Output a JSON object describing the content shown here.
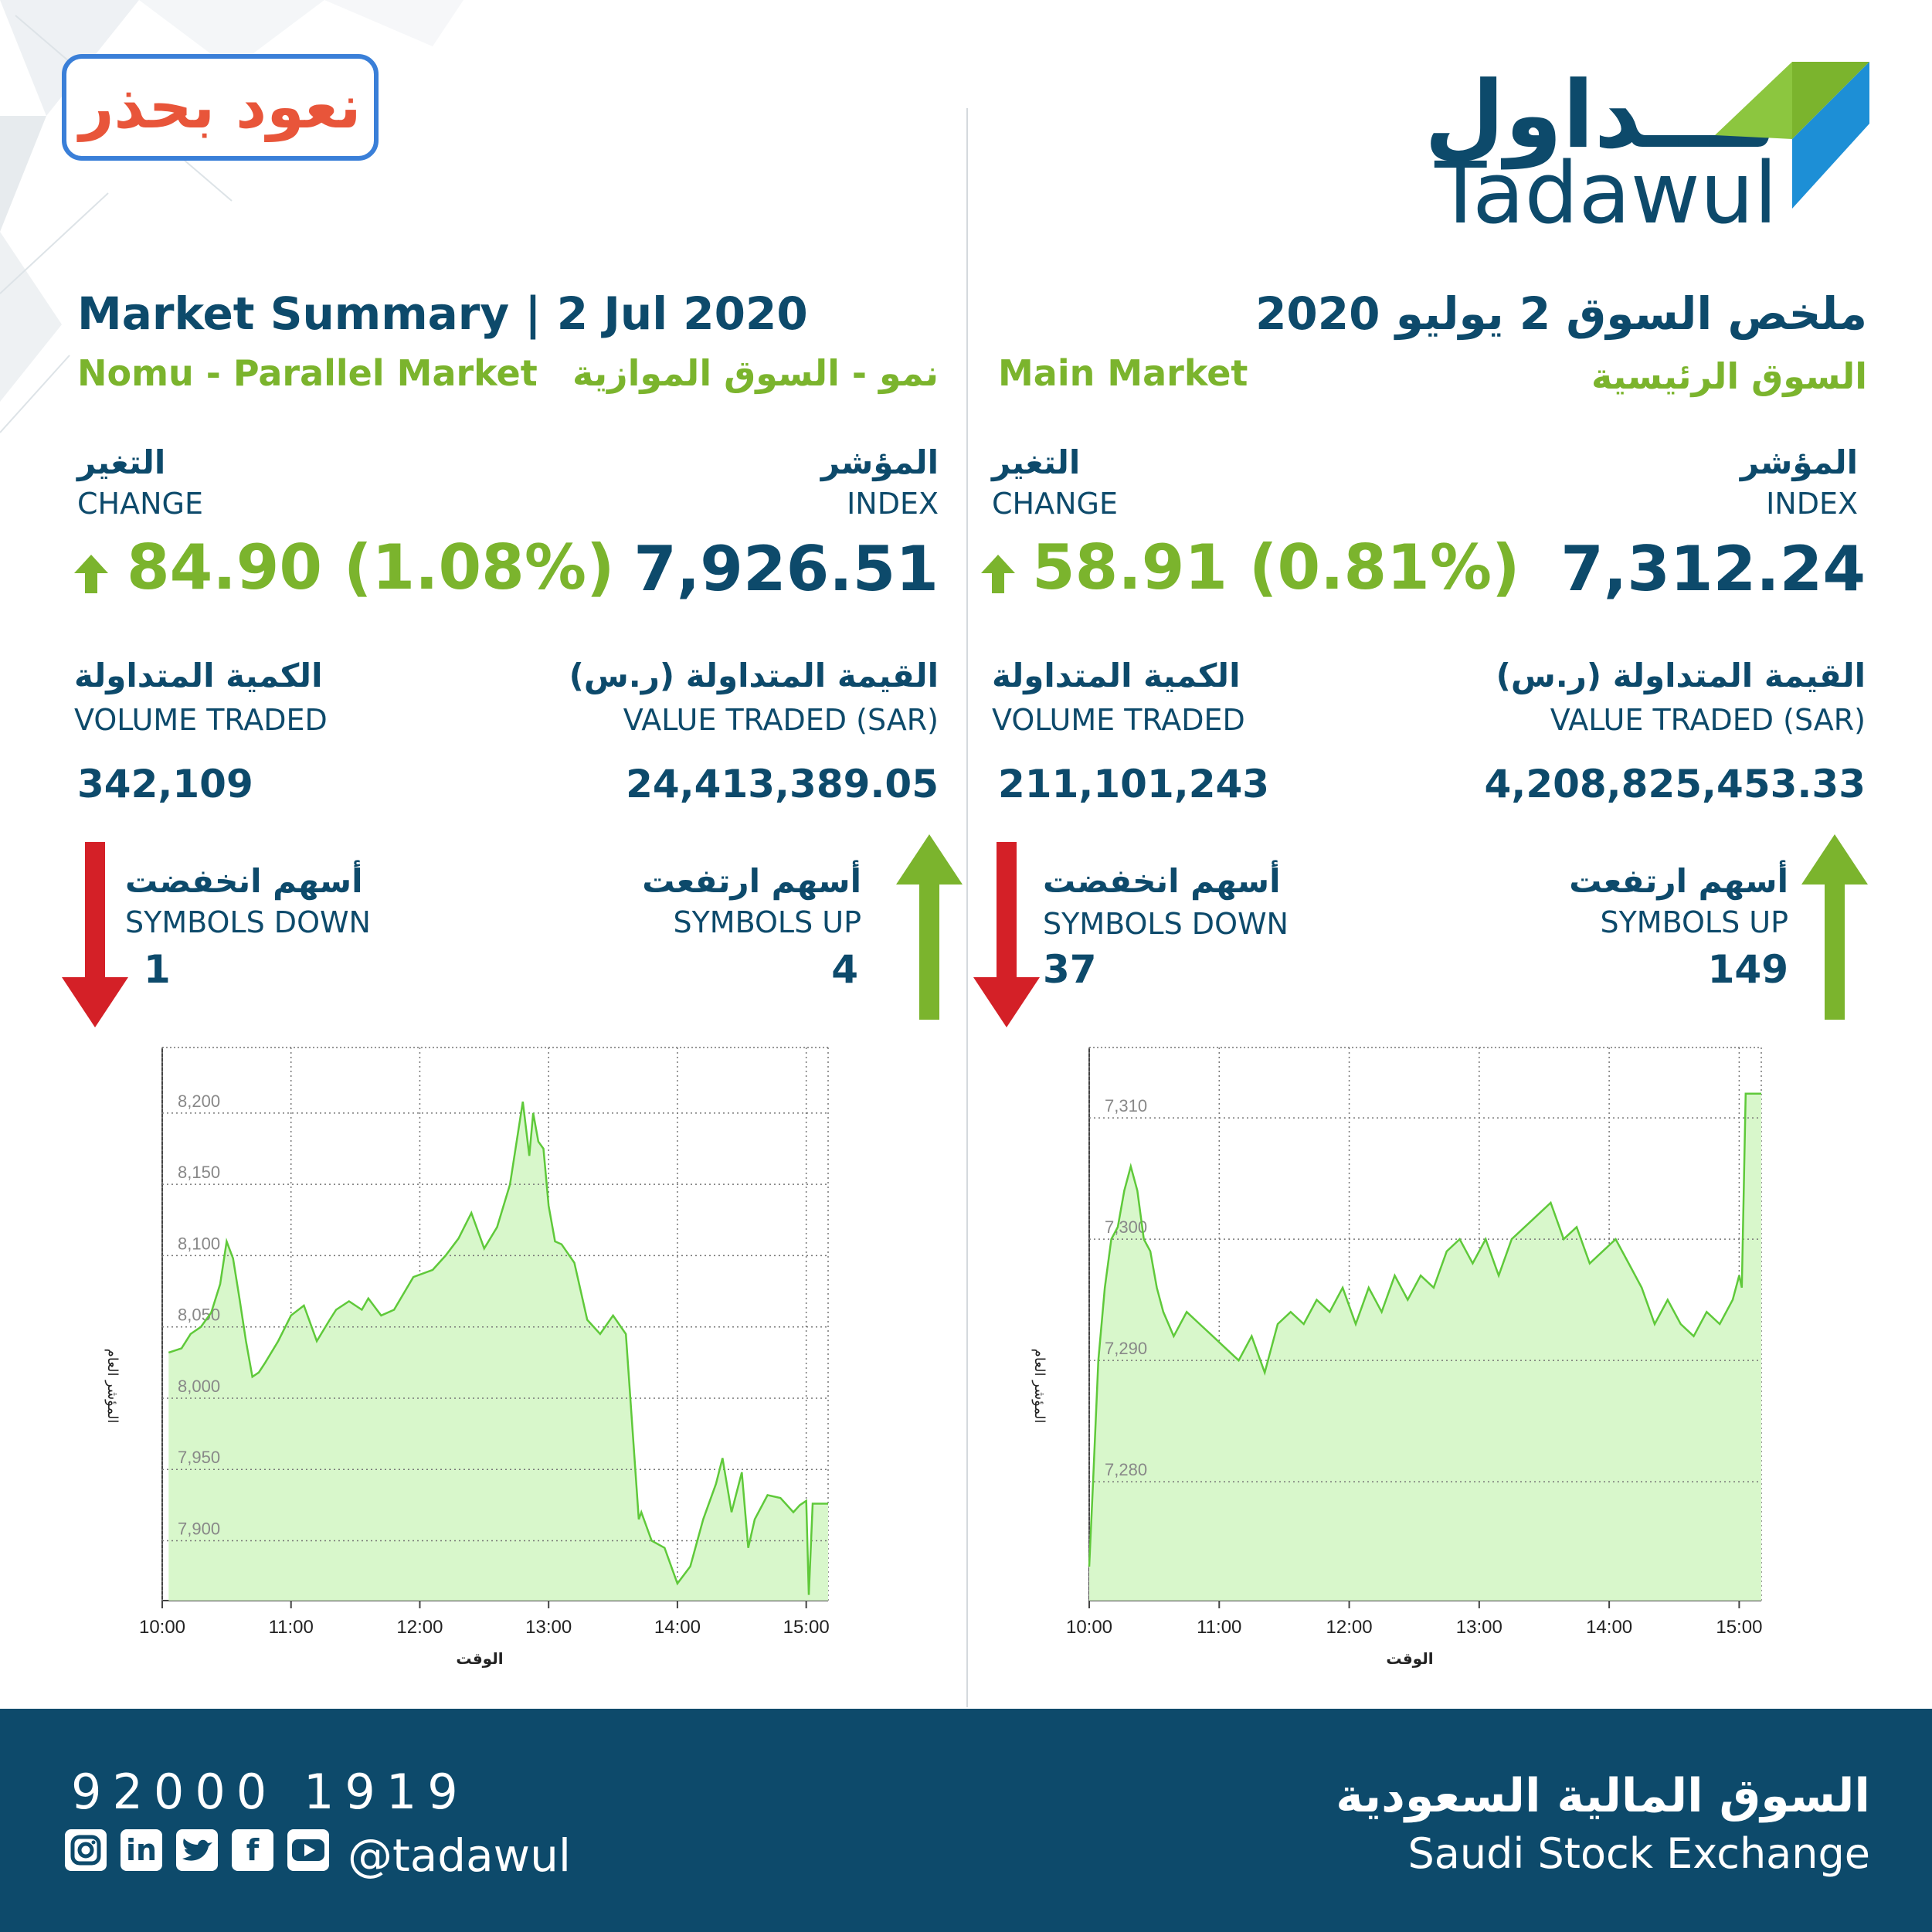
{
  "badge": {
    "text": "نعود بحذر"
  },
  "logo": {
    "arabic": "تـــداول",
    "english": "Tadawul"
  },
  "left": {
    "title": "Market Summary | 2 Jul 2020",
    "market_en": "Nomu - Parallel Market",
    "market_ar": "نمو - السوق الموازية",
    "index_ar": "المؤشر",
    "index_en": "INDEX",
    "index_value": "7,926.51",
    "change_ar": "التغير",
    "change_en": "CHANGE",
    "change_value": "84.90 (1.08%)",
    "value_ar": "القيمة المتداولة (ر.س)",
    "value_en": "VALUE TRADED (SAR)",
    "value_value": "24,413,389.05",
    "volume_ar": "الكمية المتداولة",
    "volume_en": "VOLUME TRADED",
    "volume_value": "342,109",
    "up_ar": "أسهم ارتفعت",
    "up_en": "SYMBOLS UP",
    "up_value": "4",
    "down_ar": "أسهم انخفضت",
    "down_en": "SYMBOLS DOWN",
    "down_value": "1"
  },
  "right": {
    "title": "ملخص السوق 2 يوليو 2020",
    "market_en": "Main Market",
    "market_ar": "السوق الرئيسية",
    "index_ar": "المؤشر",
    "index_en": "INDEX",
    "index_value": "7,312.24",
    "change_ar": "التغير",
    "change_en": "CHANGE",
    "change_value": "58.91 (0.81%)",
    "value_ar": "القيمة المتداولة (ر.س)",
    "value_en": "VALUE TRADED (SAR)",
    "value_value": "4,208,825,453.33",
    "volume_ar": "الكمية المتداولة",
    "volume_en": "VOLUME TRADED",
    "volume_value": "211,101,243",
    "up_ar": "أسهم ارتفعت",
    "up_en": "SYMBOLS UP",
    "up_value": "149",
    "down_ar": "أسهم انخفضت",
    "down_en": "SYMBOLS DOWN",
    "down_value": "37"
  },
  "colors": {
    "navy": "#0d4a6b",
    "green": "#7bb42d",
    "red": "#d42027",
    "line": "#5fc93a",
    "fill": "#d8f7cb"
  },
  "footer": {
    "phone": "92000 1919",
    "handle": "@tadawul",
    "exchange_ar": "السوق المالية السعودية",
    "exchange_en": "Saudi Stock Exchange",
    "social_icons": [
      "instagram-icon",
      "linkedin-icon",
      "twitter-icon",
      "facebook-icon",
      "youtube-icon"
    ]
  },
  "chart_data": [
    {
      "type": "area",
      "xlabel": "الوقت",
      "ylabel": "المؤشر العام",
      "xticks": [
        "10:00",
        "11:00",
        "12:00",
        "13:00",
        "14:00",
        "15:00"
      ],
      "yticks": [
        7900,
        7950,
        8000,
        8050,
        8100,
        8150,
        8200
      ],
      "xlim": [
        10.0,
        15.17
      ],
      "ylim": [
        7858,
        8246
      ],
      "grid": true,
      "x": [
        10.05,
        10.15,
        10.22,
        10.3,
        10.38,
        10.45,
        10.5,
        10.55,
        10.6,
        10.65,
        10.7,
        10.75,
        10.8,
        10.9,
        11.0,
        11.1,
        11.2,
        11.3,
        11.35,
        11.45,
        11.55,
        11.6,
        11.7,
        11.8,
        11.95,
        12.1,
        12.2,
        12.3,
        12.4,
        12.5,
        12.6,
        12.7,
        12.8,
        12.85,
        12.88,
        12.92,
        12.96,
        13.0,
        13.05,
        13.1,
        13.2,
        13.3,
        13.4,
        13.5,
        13.6,
        13.7,
        13.72,
        13.8,
        13.9,
        14.0,
        14.1,
        14.2,
        14.3,
        14.35,
        14.42,
        14.5,
        14.55,
        14.6,
        14.7,
        14.8,
        14.9,
        14.95,
        15.0,
        15.02,
        15.05,
        15.17
      ],
      "y": [
        8032,
        8035,
        8045,
        8050,
        8060,
        8080,
        8110,
        8098,
        8070,
        8040,
        8015,
        8018,
        8025,
        8040,
        8058,
        8065,
        8040,
        8055,
        8062,
        8068,
        8062,
        8070,
        8058,
        8062,
        8085,
        8090,
        8100,
        8112,
        8130,
        8105,
        8120,
        8150,
        8208,
        8170,
        8200,
        8180,
        8175,
        8135,
        8110,
        8108,
        8095,
        8055,
        8045,
        8058,
        8045,
        7915,
        7920,
        7900,
        7895,
        7870,
        7882,
        7915,
        7940,
        7958,
        7920,
        7948,
        7895,
        7915,
        7932,
        7930,
        7920,
        7925,
        7928,
        7862,
        7926,
        7926
      ]
    },
    {
      "type": "area",
      "xlabel": "الوقت",
      "ylabel": "المؤشر العام",
      "xticks": [
        "10:00",
        "11:00",
        "12:00",
        "13:00",
        "14:00",
        "15:00"
      ],
      "yticks": [
        7280,
        7290,
        7300,
        7310
      ],
      "xlim": [
        10.0,
        15.17
      ],
      "ylim": [
        7270.2,
        7315.8
      ],
      "grid": true,
      "x": [
        10.0,
        10.03,
        10.07,
        10.12,
        10.17,
        10.22,
        10.27,
        10.32,
        10.37,
        10.42,
        10.47,
        10.52,
        10.57,
        10.65,
        10.75,
        10.85,
        10.95,
        11.05,
        11.15,
        11.25,
        11.35,
        11.45,
        11.55,
        11.65,
        11.75,
        11.85,
        11.95,
        12.05,
        12.15,
        12.25,
        12.35,
        12.45,
        12.55,
        12.65,
        12.75,
        12.85,
        12.95,
        13.05,
        13.15,
        13.25,
        13.35,
        13.45,
        13.55,
        13.65,
        13.75,
        13.85,
        13.95,
        14.05,
        14.15,
        14.25,
        14.35,
        14.45,
        14.55,
        14.65,
        14.75,
        14.85,
        14.95,
        15.0,
        15.02,
        15.05,
        15.17
      ],
      "y": [
        7273,
        7280,
        7290,
        7296,
        7300,
        7301,
        7304,
        7306,
        7304,
        7300,
        7299,
        7296,
        7294,
        7292,
        7294,
        7293,
        7292,
        7291,
        7290,
        7292,
        7289,
        7293,
        7294,
        7293,
        7295,
        7294,
        7296,
        7293,
        7296,
        7294,
        7297,
        7295,
        7297,
        7296,
        7299,
        7300,
        7298,
        7300,
        7297,
        7300,
        7301,
        7302,
        7303,
        7300,
        7301,
        7298,
        7299,
        7300,
        7298,
        7296,
        7293,
        7295,
        7293,
        7292,
        7294,
        7293,
        7295,
        7297,
        7296,
        7312,
        7312
      ]
    }
  ]
}
